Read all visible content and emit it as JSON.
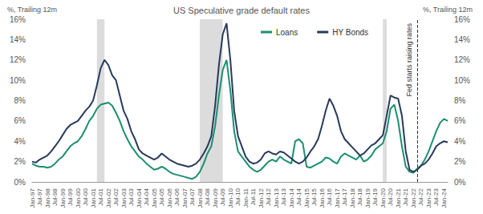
{
  "chart_data": {
    "type": "line",
    "title": "US Speculative grade default rates",
    "y_label": "%, Trailing 12m",
    "y2_label": "%, Trailing 12m",
    "legend": "top",
    "grid": false,
    "categories": [
      "Jan-97",
      null,
      "Jul-97",
      null,
      "Jan-98",
      null,
      "Jul-98",
      null,
      "Jan-99",
      null,
      "Jul-99",
      null,
      "Jan-00",
      null,
      "Jul-00",
      null,
      "Jan-01",
      null,
      "Jul-01",
      null,
      "Jan-02",
      null,
      "Jul-02",
      null,
      "Jan-03",
      null,
      "Jul-03",
      null,
      "Jan-04",
      null,
      "Jul-04",
      null,
      "Jan-05",
      null,
      "Jul-05",
      null,
      "Jan-06",
      null,
      "Jul-06",
      null,
      "Jan-07",
      null,
      "Jul-07",
      null,
      "Jan-08",
      null,
      "Jul-08",
      null,
      "Jan-09",
      null,
      "Jul-09",
      null,
      "Jan-10",
      null,
      "Jul-10",
      null,
      "Jan-11",
      null,
      "Jul-11",
      null,
      "Jan-12",
      null,
      "Jul-12",
      null,
      "Jan-13",
      null,
      "Jul-13",
      null,
      "Jan-14",
      null,
      "Jul-14",
      null,
      "Jan-15",
      null,
      "Jul-15",
      null,
      "Jan-16",
      null,
      "Jul-16",
      null,
      "Jan-17",
      null,
      "Jul-17",
      null,
      "Jan-18",
      null,
      "Jul-18",
      null,
      "Jan-19",
      null,
      "Jul-19",
      null,
      "Jan-20",
      null,
      "Jul-20",
      null,
      "Jan-21",
      null,
      "Jul-21",
      null,
      "Jan-22",
      null,
      "Jul-22",
      null,
      "Jan-23",
      null,
      "Jul-23",
      null,
      "Jan-24",
      null
    ],
    "series": [
      {
        "name": "Loans",
        "color": "#1b8f6f",
        "values": [
          1.8,
          1.6,
          1.5,
          1.5,
          1.4,
          1.5,
          1.8,
          2.2,
          2.5,
          3.0,
          3.5,
          3.8,
          4.0,
          4.5,
          5.2,
          6.0,
          6.5,
          7.2,
          7.6,
          7.7,
          7.8,
          7.5,
          6.8,
          6.0,
          5.0,
          4.2,
          3.5,
          3.0,
          2.5,
          2.2,
          1.8,
          1.5,
          1.2,
          1.3,
          1.5,
          1.3,
          1.0,
          0.8,
          0.7,
          0.6,
          0.5,
          0.4,
          0.3,
          0.5,
          1.0,
          1.8,
          2.8,
          3.5,
          5.5,
          8.5,
          11.0,
          12.0,
          9.0,
          5.0,
          3.0,
          2.5,
          2.0,
          1.5,
          1.2,
          1.0,
          1.2,
          1.6,
          2.0,
          2.2,
          2.0,
          2.5,
          2.2,
          2.0,
          1.8,
          4.0,
          4.2,
          3.8,
          1.5,
          1.4,
          1.6,
          1.8,
          2.0,
          2.4,
          2.3,
          2.0,
          1.8,
          2.5,
          2.8,
          2.6,
          2.4,
          2.2,
          2.6,
          2.0,
          2.2,
          2.6,
          3.2,
          3.5,
          3.8,
          5.0,
          7.2,
          7.6,
          6.0,
          3.5,
          1.5,
          1.0,
          0.9,
          1.3,
          1.6,
          2.2,
          3.0,
          4.0,
          5.0,
          5.8,
          6.2,
          6.0
        ]
      },
      {
        "name": "HY Bonds",
        "color": "#283a5c",
        "values": [
          2.0,
          1.9,
          2.2,
          2.4,
          2.6,
          3.0,
          3.5,
          4.0,
          4.6,
          5.2,
          5.6,
          5.8,
          6.0,
          6.5,
          7.0,
          7.4,
          8.0,
          9.5,
          11.2,
          12.0,
          11.5,
          10.5,
          10.0,
          8.5,
          7.0,
          6.2,
          5.0,
          4.2,
          3.2,
          2.8,
          2.6,
          2.4,
          2.2,
          2.4,
          2.8,
          2.5,
          2.2,
          2.0,
          1.8,
          1.7,
          1.6,
          1.5,
          1.6,
          1.8,
          2.2,
          2.8,
          3.5,
          4.5,
          7.5,
          11.5,
          14.5,
          15.6,
          12.0,
          7.0,
          4.5,
          3.5,
          2.5,
          2.0,
          1.8,
          1.9,
          2.2,
          2.8,
          3.0,
          2.8,
          2.7,
          3.0,
          2.9,
          2.6,
          2.3,
          2.0,
          1.8,
          2.0,
          2.4,
          3.0,
          3.5,
          4.2,
          5.5,
          7.0,
          8.2,
          7.5,
          6.5,
          5.0,
          4.2,
          3.8,
          3.4,
          3.0,
          2.6,
          2.8,
          3.2,
          3.6,
          3.8,
          4.2,
          4.6,
          6.5,
          8.5,
          8.3,
          8.2,
          6.5,
          3.0,
          1.2,
          1.0,
          1.2,
          1.6,
          1.8,
          2.2,
          2.8,
          3.5,
          3.8,
          4.0,
          3.9
        ]
      }
    ],
    "ylim": [
      0,
      16
    ],
    "yticks": [
      {
        "value": 0,
        "label": "0%"
      },
      {
        "value": 2,
        "label": "2%"
      },
      {
        "value": 4,
        "label": "4%"
      },
      {
        "value": 6,
        "label": "6%"
      },
      {
        "value": 8,
        "label": "8%"
      },
      {
        "value": 10,
        "label": "10%"
      },
      {
        "value": 12,
        "label": "12%"
      },
      {
        "value": 14,
        "label": "14%"
      },
      {
        "value": 16,
        "label": "16%"
      }
    ],
    "y2lim": [
      0,
      16
    ],
    "y2ticks": [
      {
        "value": 0,
        "label": "0%"
      },
      {
        "value": 2,
        "label": "2%"
      },
      {
        "value": 4,
        "label": "4%"
      },
      {
        "value": 6,
        "label": "6%"
      },
      {
        "value": 8,
        "label": "8%"
      },
      {
        "value": 10,
        "label": "10%"
      },
      {
        "value": 12,
        "label": "12%"
      },
      {
        "value": 14,
        "label": "14%"
      },
      {
        "value": 16,
        "label": "16%"
      }
    ],
    "shaded_periods": [
      [
        17,
        19
      ],
      [
        44,
        50
      ],
      [
        92,
        93
      ]
    ],
    "annotations": [
      {
        "index": 101,
        "label": "Fed starts raising rates",
        "line_style": "dashed"
      }
    ]
  }
}
